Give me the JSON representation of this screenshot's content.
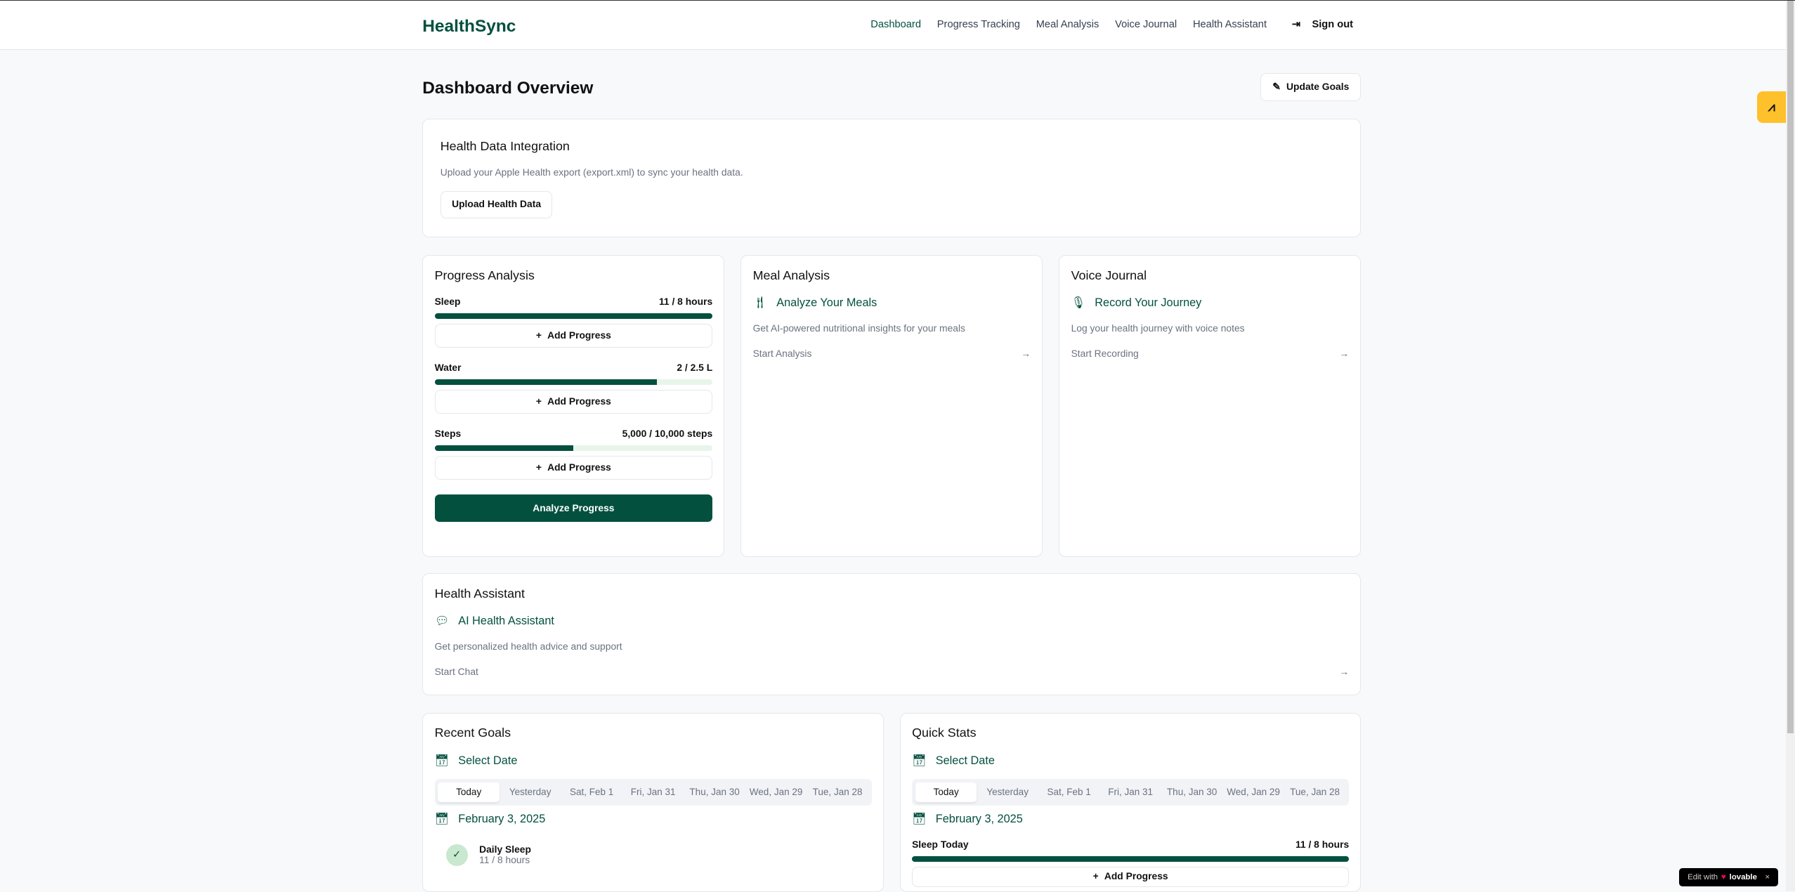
{
  "app": {
    "name": "HealthSync"
  },
  "nav": {
    "items": [
      "Dashboard",
      "Progress Tracking",
      "Meal Analysis",
      "Voice Journal",
      "Health Assistant"
    ],
    "sign_out": "Sign out"
  },
  "page": {
    "title": "Dashboard Overview",
    "update_goals": "Update Goals"
  },
  "integration": {
    "title": "Health Data Integration",
    "desc": "Upload your Apple Health export (export.xml) to sync your health data.",
    "button": "Upload Health Data"
  },
  "progress": {
    "title": "Progress Analysis",
    "add_label": "Add Progress",
    "analyze": "Analyze Progress",
    "metrics": [
      {
        "label": "Sleep",
        "value": "11 / 8 hours",
        "percent": 100
      },
      {
        "label": "Water",
        "value": "2 / 2.5 L",
        "percent": 80
      },
      {
        "label": "Steps",
        "value": "5,000 / 10,000 steps",
        "percent": 50
      }
    ]
  },
  "meal": {
    "title": "Meal Analysis",
    "feature": "Analyze Your Meals",
    "desc": "Get AI-powered nutritional insights for your meals",
    "link": "Start Analysis"
  },
  "voice": {
    "title": "Voice Journal",
    "feature": "Record Your Journey",
    "desc": "Log your health journey with voice notes",
    "link": "Start Recording"
  },
  "assistant": {
    "title": "Health Assistant",
    "feature": "AI Health Assistant",
    "desc": "Get personalized health advice and support",
    "link": "Start Chat"
  },
  "dates": [
    "Today",
    "Yesterday",
    "Sat, Feb 1",
    "Fri, Jan 31",
    "Thu, Jan 30",
    "Wed, Jan 29",
    "Tue, Jan 28"
  ],
  "recent_goals": {
    "title": "Recent Goals",
    "select_date": "Select Date",
    "date": "February 3, 2025",
    "goal": {
      "name": "Daily Sleep",
      "value": "11 / 8 hours",
      "completed": true
    }
  },
  "quick_stats": {
    "title": "Quick Stats",
    "select_date": "Select Date",
    "date": "February 3, 2025",
    "stat": {
      "label": "Sleep Today",
      "value": "11 / 8 hours",
      "percent": 100
    },
    "add_label": "Add Progress"
  },
  "badge": {
    "text": "Edit with",
    "brand": "lovable"
  },
  "colors": {
    "accent": "#03503f",
    "widget": "#fec12b"
  }
}
